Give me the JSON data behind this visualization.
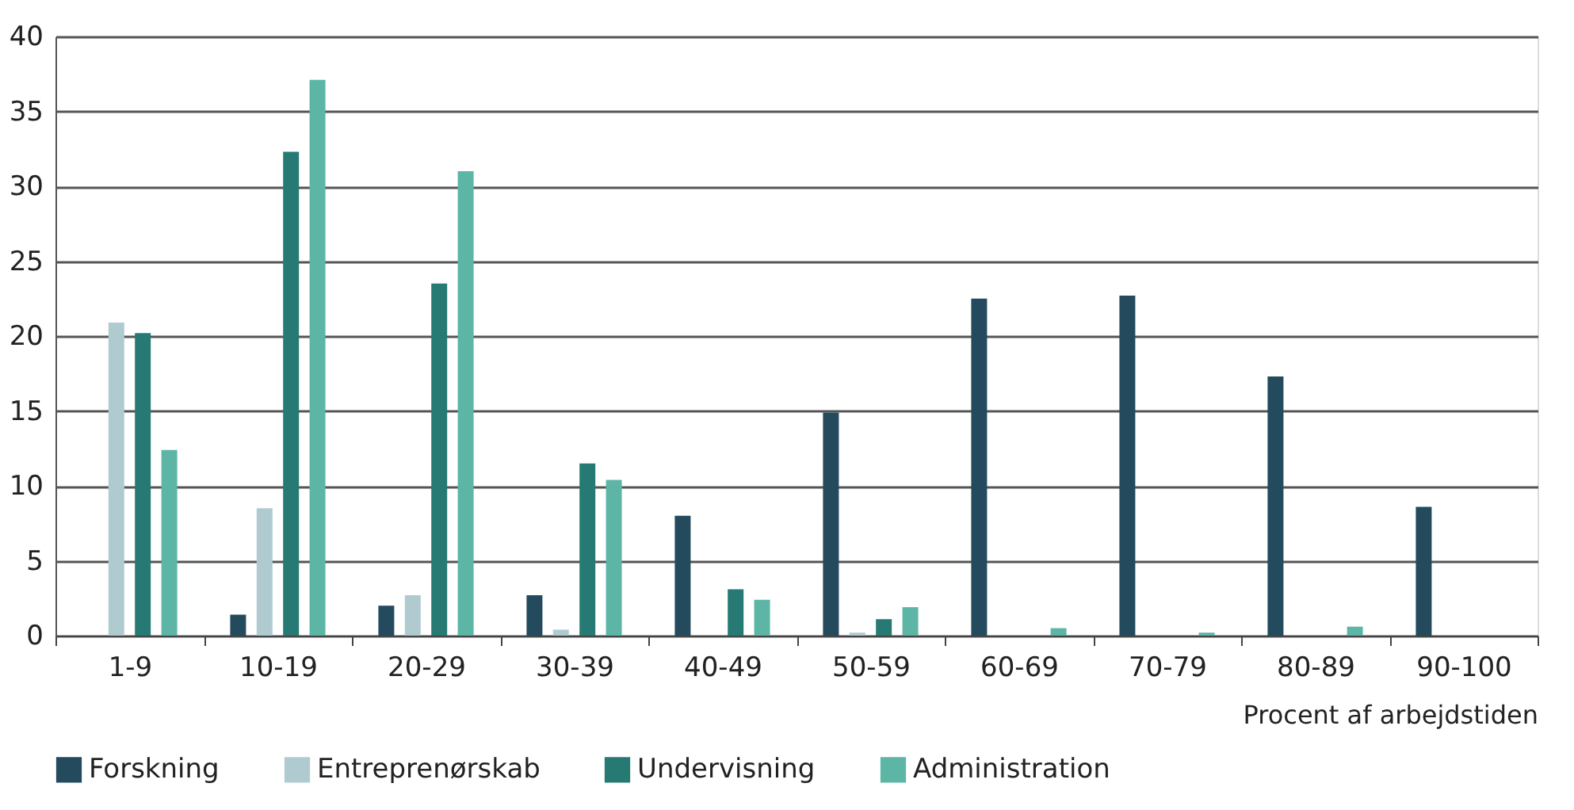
{
  "chart_data": {
    "type": "bar",
    "xlabel": "Procent af arbejdstiden",
    "categories": [
      "1-9",
      "10-19",
      "20-29",
      "30-39",
      "40-49",
      "50-59",
      "60-69",
      "70-79",
      "80-89",
      "90-100"
    ],
    "series": [
      {
        "name": "Forskning",
        "color": "#244a5e",
        "values": [
          0,
          1.4,
          2.0,
          2.7,
          8.0,
          14.9,
          22.5,
          22.7,
          17.3,
          8.6
        ]
      },
      {
        "name": "Entreprenørskab",
        "color": "#b0cbd0",
        "values": [
          20.9,
          8.5,
          2.7,
          0.4,
          null,
          0.2,
          0,
          0,
          0,
          0
        ]
      },
      {
        "name": "Undervisning",
        "color": "#277a73",
        "values": [
          20.2,
          32.3,
          23.5,
          11.5,
          3.1,
          1.1,
          null,
          0,
          0,
          0
        ]
      },
      {
        "name": "Administration",
        "color": "#5db5a6",
        "values": [
          12.4,
          37.1,
          31.0,
          10.4,
          2.4,
          1.9,
          0.5,
          0.2,
          0.6,
          0
        ]
      }
    ],
    "ylim": [
      0,
      40
    ],
    "yticks": [
      0,
      5,
      10,
      15,
      20,
      25,
      30,
      35,
      40
    ],
    "grid": "y",
    "legend": "bottom"
  }
}
